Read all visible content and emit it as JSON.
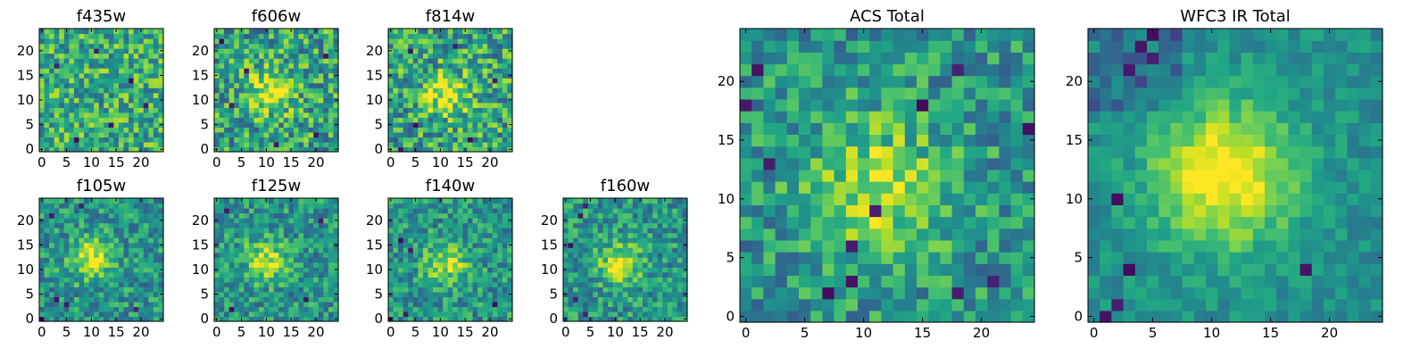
{
  "chart_data": [
    {
      "id": "f435w",
      "type": "heatmap",
      "title": "f435w",
      "x_ticks": [
        0,
        5,
        10,
        15,
        20
      ],
      "y_ticks": [
        0,
        5,
        10,
        15,
        20
      ],
      "xlim": [
        -0.5,
        24.5
      ],
      "ylim": [
        -0.5,
        24.5
      ],
      "grid_size": [
        25,
        25
      ],
      "colormap": "viridis",
      "bright_spot": null,
      "dark_pixels": [
        [
          3,
          17
        ],
        [
          14,
          5
        ],
        [
          21,
          9
        ],
        [
          11,
          20
        ],
        [
          7,
          2
        ],
        [
          18,
          14
        ]
      ]
    },
    {
      "id": "f606w",
      "type": "heatmap",
      "title": "f606w",
      "x_ticks": [
        0,
        5,
        10,
        15,
        20
      ],
      "y_ticks": [
        0,
        5,
        10,
        15,
        20
      ],
      "xlim": [
        -0.5,
        24.5
      ],
      "ylim": [
        -0.5,
        24.5
      ],
      "grid_size": [
        25,
        25
      ],
      "colormap": "viridis",
      "bright_spot": {
        "x": 11,
        "y": 12
      },
      "dark_pixels": [
        [
          1,
          22
        ],
        [
          3,
          9
        ],
        [
          12,
          1
        ],
        [
          20,
          3
        ],
        [
          6,
          16
        ],
        [
          22,
          19
        ]
      ]
    },
    {
      "id": "f814w",
      "type": "heatmap",
      "title": "f814w",
      "x_ticks": [
        0,
        5,
        10,
        15,
        20
      ],
      "y_ticks": [
        0,
        5,
        10,
        15,
        20
      ],
      "xlim": [
        -0.5,
        24.5
      ],
      "ylim": [
        -0.5,
        24.5
      ],
      "grid_size": [
        25,
        25
      ],
      "colormap": "viridis",
      "bright_spot": {
        "x": 11,
        "y": 11
      },
      "dark_pixels": [
        [
          4,
          20
        ],
        [
          5,
          5
        ],
        [
          16,
          2
        ],
        [
          21,
          14
        ],
        [
          2,
          0
        ],
        [
          13,
          21
        ]
      ]
    },
    {
      "id": "f105w",
      "type": "heatmap",
      "title": "f105w",
      "x_ticks": [
        0,
        5,
        10,
        15,
        20
      ],
      "y_ticks": [
        0,
        5,
        10,
        15,
        20
      ],
      "xlim": [
        -0.5,
        24.5
      ],
      "ylim": [
        -0.5,
        24.5
      ],
      "grid_size": [
        25,
        25
      ],
      "colormap": "viridis",
      "bright_spot": {
        "x": 10,
        "y": 12
      },
      "dark_pixels": [
        [
          0,
          0
        ],
        [
          3,
          4
        ],
        [
          5,
          3
        ],
        [
          19,
          2
        ],
        [
          8,
          23
        ],
        [
          2,
          21
        ]
      ]
    },
    {
      "id": "f125w",
      "type": "heatmap",
      "title": "f125w",
      "x_ticks": [
        0,
        5,
        10,
        15,
        20
      ],
      "y_ticks": [
        0,
        5,
        10,
        15,
        20
      ],
      "xlim": [
        -0.5,
        24.5
      ],
      "ylim": [
        -0.5,
        24.5
      ],
      "grid_size": [
        25,
        25
      ],
      "colormap": "viridis",
      "bright_spot": {
        "x": 10,
        "y": 12
      },
      "dark_pixels": [
        [
          18,
          4
        ],
        [
          3,
          2
        ],
        [
          2,
          22
        ],
        [
          21,
          20
        ]
      ]
    },
    {
      "id": "f140w",
      "type": "heatmap",
      "title": "f140w",
      "x_ticks": [
        0,
        5,
        10,
        15,
        20
      ],
      "y_ticks": [
        0,
        5,
        10,
        15,
        20
      ],
      "xlim": [
        -0.5,
        24.5
      ],
      "ylim": [
        -0.5,
        24.5
      ],
      "grid_size": [
        25,
        25
      ],
      "colormap": "viridis",
      "bright_spot": {
        "x": 11,
        "y": 11
      },
      "dark_pixels": [
        [
          0,
          0
        ],
        [
          2,
          16
        ],
        [
          4,
          14
        ],
        [
          3,
          1
        ],
        [
          21,
          3
        ]
      ]
    },
    {
      "id": "f160w",
      "type": "heatmap",
      "title": "f160w",
      "x_ticks": [
        0,
        5,
        10,
        15,
        20
      ],
      "y_ticks": [
        0,
        5,
        10,
        15,
        20
      ],
      "xlim": [
        -0.5,
        24.5
      ],
      "ylim": [
        -0.5,
        24.5
      ],
      "grid_size": [
        25,
        25
      ],
      "colormap": "viridis",
      "bright_spot": {
        "x": 11,
        "y": 11
      },
      "dark_pixels": [
        [
          4,
          23
        ],
        [
          3,
          21
        ],
        [
          1,
          15
        ],
        [
          4,
          1
        ],
        [
          2,
          4
        ]
      ]
    },
    {
      "id": "acs_total",
      "type": "heatmap",
      "title": "ACS Total",
      "x_ticks": [
        0,
        5,
        10,
        15,
        20
      ],
      "y_ticks": [
        0,
        5,
        10,
        15,
        20
      ],
      "xlim": [
        -0.5,
        24.5
      ],
      "ylim": [
        -0.5,
        24.5
      ],
      "grid_size": [
        25,
        25
      ],
      "colormap": "viridis",
      "bright_spot": {
        "x": 11,
        "y": 11
      },
      "dark_pixels": [
        [
          1,
          21
        ],
        [
          0,
          18
        ],
        [
          15,
          18
        ],
        [
          18,
          21
        ],
        [
          24,
          16
        ],
        [
          18,
          2
        ],
        [
          9,
          3
        ],
        [
          9,
          6
        ],
        [
          7,
          2
        ],
        [
          11,
          9
        ],
        [
          21,
          3
        ],
        [
          2,
          13
        ]
      ]
    },
    {
      "id": "wfc3_ir_total",
      "type": "heatmap",
      "title": "WFC3 IR Total",
      "x_ticks": [
        0,
        5,
        10,
        15,
        20
      ],
      "y_ticks": [
        0,
        5,
        10,
        15,
        20
      ],
      "xlim": [
        -0.5,
        24.5
      ],
      "ylim": [
        -0.5,
        24.5
      ],
      "grid_size": [
        25,
        25
      ],
      "colormap": "viridis",
      "bright_spot": {
        "x": 11,
        "y": 12
      },
      "dark_pixels": [
        [
          1,
          0
        ],
        [
          2,
          1
        ],
        [
          3,
          4
        ],
        [
          4,
          23
        ],
        [
          5,
          22
        ],
        [
          3,
          21
        ],
        [
          5,
          24
        ],
        [
          2,
          10
        ],
        [
          18,
          4
        ]
      ]
    }
  ]
}
